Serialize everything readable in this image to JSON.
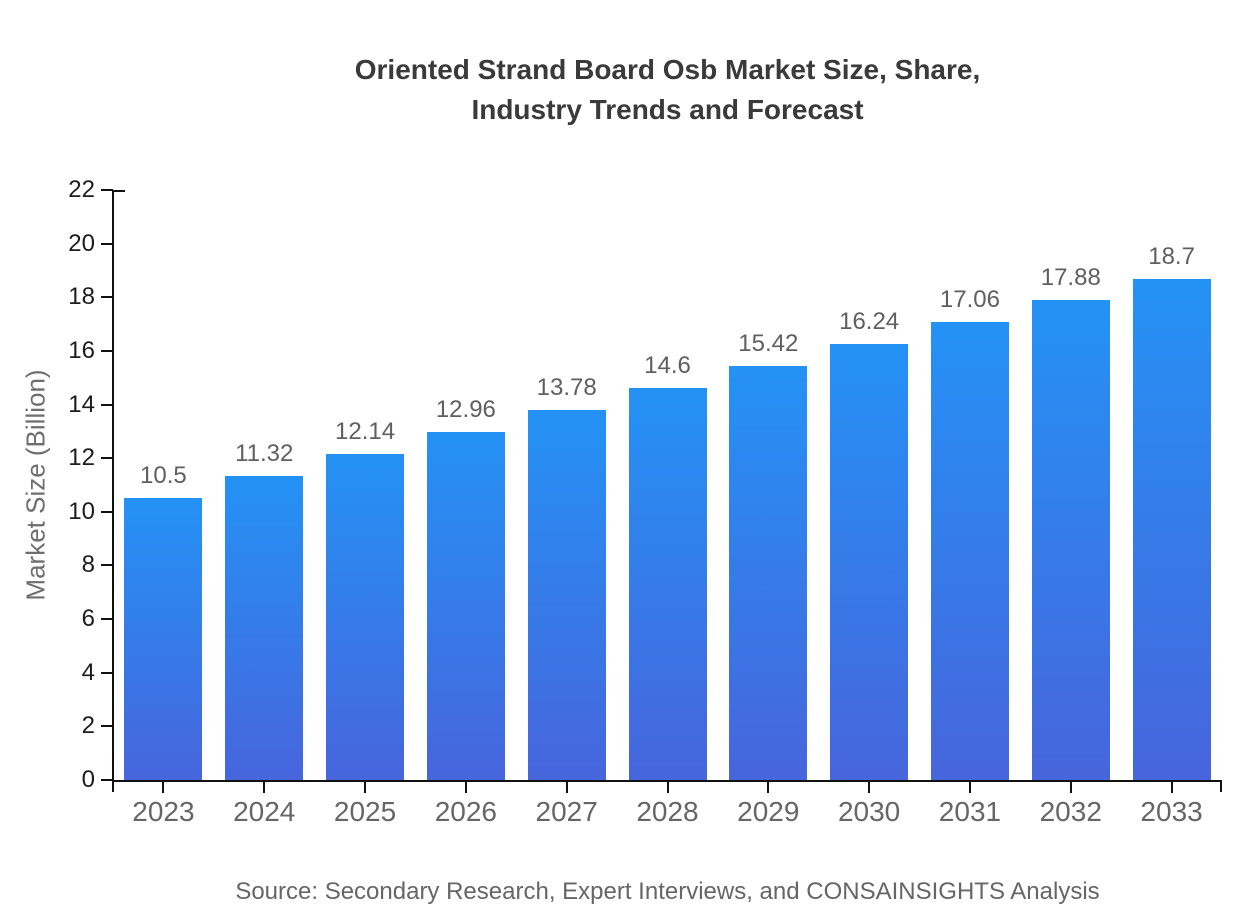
{
  "chart_data": {
    "type": "bar",
    "title": "Oriented Strand Board Osb Market Size, Share, Industry Trends and Forecast",
    "title_lines": [
      "Oriented Strand Board Osb Market Size, Share,",
      "Industry Trends and Forecast"
    ],
    "categories": [
      "2023",
      "2024",
      "2025",
      "2026",
      "2027",
      "2028",
      "2029",
      "2030",
      "2031",
      "2032",
      "2033"
    ],
    "values": [
      10.5,
      11.32,
      12.14,
      12.96,
      13.78,
      14.6,
      15.42,
      16.24,
      17.06,
      17.88,
      18.7
    ],
    "value_labels": [
      "10.5",
      "11.32",
      "12.14",
      "12.96",
      "13.78",
      "14.6",
      "15.42",
      "16.24",
      "17.06",
      "17.88",
      "18.7"
    ],
    "xlabel": "",
    "ylabel": "Market Size (Billion)",
    "ylim": [
      0,
      22
    ],
    "yticks": [
      "0",
      "2",
      "4",
      "6",
      "8",
      "10",
      "12",
      "14",
      "16",
      "18",
      "20",
      "22"
    ],
    "grid": false,
    "legend": "none",
    "source_note": "Source: Secondary Research, Expert Interviews, and CONSAINSIGHTS Analysis"
  },
  "colors": {
    "background": "#ffffff",
    "bar_gradient_top": "#2492f5",
    "bar_gradient_bottom": "#4765dc",
    "axis": "#111111",
    "title_text": "#3a3a3a",
    "x_tick_label": "#666666",
    "y_tick_label": "#1c1c1c",
    "value_label": "#5f5f5f",
    "y_axis_title": "#6e6e6e",
    "source_text": "#666666"
  }
}
